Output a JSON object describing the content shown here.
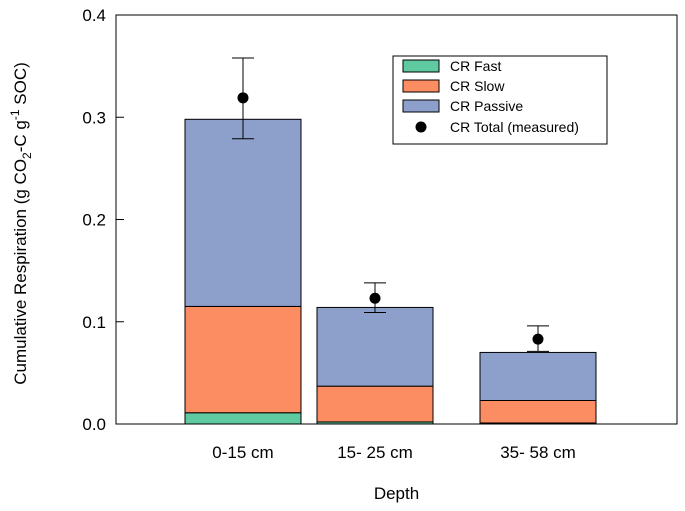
{
  "chart_data": {
    "type": "bar",
    "stacked": true,
    "xlabel": "Depth",
    "ylabel": {
      "prefix": "Cumulative Respiration (g CO",
      "sub": "2",
      "mid": "-C g",
      "sup": "-1",
      "suffix": " SOC)"
    },
    "categories": [
      "0-15 cm",
      "15- 25 cm",
      "35- 58 cm"
    ],
    "ylim": [
      0,
      0.4
    ],
    "yticks": [
      "0.0",
      "0.1",
      "0.2",
      "0.3",
      "0.4"
    ],
    "grid": false,
    "legend_position": "top-right",
    "series": [
      {
        "name": "CR Fast",
        "color": "#5fc9a0",
        "values": [
          0.011,
          0.002,
          0.001
        ]
      },
      {
        "name": "CR Slow",
        "color": "#fc8d62",
        "values": [
          0.104,
          0.035,
          0.022
        ]
      },
      {
        "name": "CR Passive",
        "color": "#8da0cb",
        "values": [
          0.183,
          0.077,
          0.047
        ]
      }
    ],
    "measured": {
      "name": "CR Total (measured)",
      "color": "#000000",
      "values": [
        0.319,
        0.123,
        0.083
      ],
      "error_upper": [
        0.358,
        0.138,
        0.096
      ],
      "error_lower": [
        0.279,
        0.109,
        0.071
      ]
    }
  }
}
